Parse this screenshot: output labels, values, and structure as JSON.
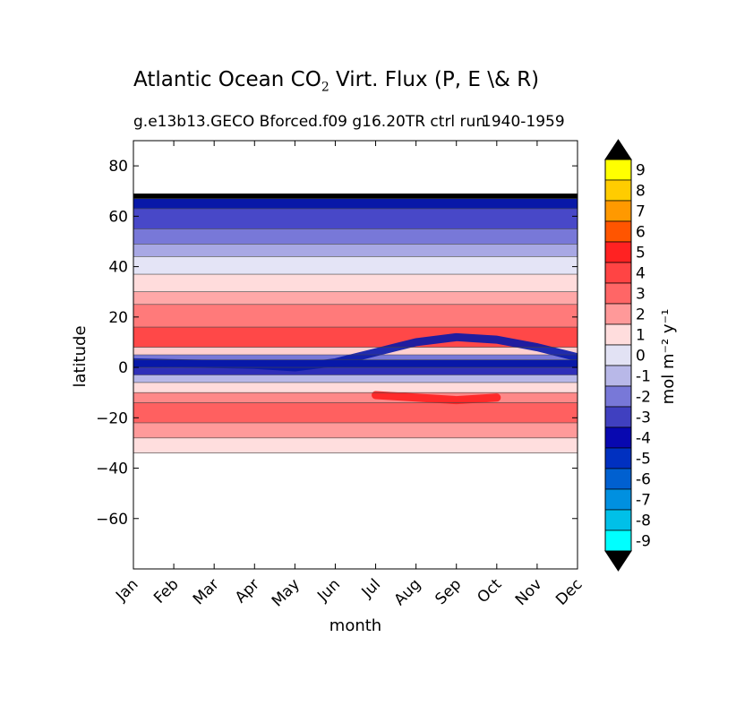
{
  "title_main": "Atlantic Ocean CO",
  "title_sub": "2",
  "title_rest": " Virt. Flux (P, E \\& R)",
  "subtitle_left": "g.e13b13.GECO Bforced.f09 g16.20TR ctrl run",
  "subtitle_right": "1940-1959",
  "chart_data": {
    "type": "heatmap",
    "xlabel": "month",
    "ylabel": "latitude",
    "colorbar_label": "mol m⁻² y⁻¹",
    "x_ticks": [
      "Jan",
      "Feb",
      "Mar",
      "Apr",
      "May",
      "Jun",
      "Jul",
      "Aug",
      "Sep",
      "Oct",
      "Nov",
      "Dec"
    ],
    "ylim": [
      -80,
      90
    ],
    "y_ticks": [
      80,
      60,
      40,
      20,
      0,
      -20,
      -40,
      -60
    ],
    "y_tick_labels": [
      "80",
      "60",
      "40",
      "20",
      "0",
      "−20",
      "−40",
      "−60"
    ],
    "data_lat_range": [
      -34,
      69
    ],
    "colorbar_levels": [
      "9",
      "8",
      "7",
      "6",
      "5",
      "4",
      "3",
      "2",
      "1",
      "0",
      "-1",
      "-2",
      "-3",
      "-4",
      "-5",
      "-6",
      "-7",
      "-8",
      "-9"
    ],
    "colorbar_colors": [
      "#ffff00",
      "#ffcc00",
      "#ff9900",
      "#ff5500",
      "#ff2222",
      "#ff4444",
      "#ff6666",
      "#ff9999",
      "#ffdddd",
      "#e2e2f4",
      "#b8b8e8",
      "#7878d8",
      "#4040c0",
      "#0808b0",
      "#0030c0",
      "#0060d0",
      "#0090e0",
      "#00c0e8",
      "#00ffff"
    ],
    "colorbar_over_color": "#000000",
    "colorbar_under_color": "#000000",
    "bands": [
      {
        "lat_top": 69,
        "lat_bottom": 67,
        "value": -10,
        "color": "#000000"
      },
      {
        "lat_top": 67,
        "lat_bottom": 63,
        "value": -5,
        "color": "#0818a8"
      },
      {
        "lat_top": 63,
        "lat_bottom": 55,
        "value": -3,
        "color": "#4848c8"
      },
      {
        "lat_top": 55,
        "lat_bottom": 49,
        "value": -2,
        "color": "#7878d8"
      },
      {
        "lat_top": 49,
        "lat_bottom": 44,
        "value": -1,
        "color": "#a8a8e4"
      },
      {
        "lat_top": 44,
        "lat_bottom": 37,
        "value": 0,
        "color": "#e4e4f6"
      },
      {
        "lat_top": 37,
        "lat_bottom": 30,
        "value": 1,
        "color": "#ffdcdc"
      },
      {
        "lat_top": 30,
        "lat_bottom": 25,
        "value": 2,
        "color": "#ffa8a8"
      },
      {
        "lat_top": 25,
        "lat_bottom": 16,
        "value": 3,
        "color": "#ff7a7a"
      },
      {
        "lat_top": 16,
        "lat_bottom": 8,
        "value": 3.5,
        "color": "#ff4848"
      },
      {
        "lat_top": 8,
        "lat_bottom": 5,
        "value": 1,
        "color": "#ffd0d0"
      },
      {
        "lat_top": 5,
        "lat_bottom": 3,
        "value": -2,
        "color": "#7878d8"
      },
      {
        "lat_top": 3,
        "lat_bottom": 0,
        "value": -5,
        "color": "#0818a8"
      },
      {
        "lat_top": 0,
        "lat_bottom": -3,
        "value": -4,
        "color": "#3030b8"
      },
      {
        "lat_top": -3,
        "lat_bottom": -6,
        "value": -1,
        "color": "#b8b8e8"
      },
      {
        "lat_top": -6,
        "lat_bottom": -10,
        "value": 1,
        "color": "#ffdcdc"
      },
      {
        "lat_top": -10,
        "lat_bottom": -14,
        "value": 2,
        "color": "#ff8888"
      },
      {
        "lat_top": -14,
        "lat_bottom": -22,
        "value": 3,
        "color": "#ff6060"
      },
      {
        "lat_top": -22,
        "lat_bottom": -28,
        "value": 2,
        "color": "#ff9a9a"
      },
      {
        "lat_top": -28,
        "lat_bottom": -34,
        "value": 1,
        "color": "#ffdede"
      }
    ],
    "features": [
      {
        "name": "equatorial-band-north",
        "months_lat": [
          [
            0,
            2
          ],
          [
            3,
            1
          ],
          [
            4,
            0
          ],
          [
            5,
            2
          ],
          [
            6,
            6
          ],
          [
            7,
            10
          ],
          [
            8,
            12
          ],
          [
            9,
            11
          ],
          [
            10,
            8
          ],
          [
            11,
            4
          ]
        ],
        "value": -5,
        "color": "#0818a8"
      },
      {
        "name": "tropical-max",
        "months_lat": [
          [
            6,
            -11
          ],
          [
            7,
            -12
          ],
          [
            8,
            -13
          ],
          [
            9,
            -12
          ]
        ],
        "value": 4,
        "color": "#ff2020"
      }
    ]
  }
}
